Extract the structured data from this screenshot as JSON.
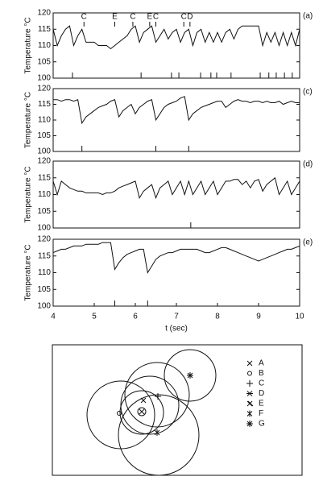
{
  "chart_data": [
    {
      "type": "line",
      "label": "(a)",
      "ylabel": "Temperature °C",
      "xlim": [
        4,
        10
      ],
      "ylim": [
        100,
        120
      ],
      "yticks": [
        100,
        105,
        110,
        115,
        120
      ],
      "x": [
        4,
        4.1,
        4.2,
        4.3,
        4.4,
        4.5,
        4.6,
        4.7,
        4.8,
        4.9,
        5,
        5.1,
        5.2,
        5.3,
        5.4,
        5.5,
        5.6,
        5.7,
        5.8,
        5.9,
        6,
        6.1,
        6.2,
        6.3,
        6.4,
        6.5,
        6.6,
        6.7,
        6.8,
        6.9,
        7,
        7.1,
        7.2,
        7.3,
        7.4,
        7.5,
        7.6,
        7.7,
        7.8,
        7.9,
        8,
        8.1,
        8.2,
        8.3,
        8.4,
        8.5,
        8.6,
        8.7,
        8.8,
        8.9,
        9,
        9.1,
        9.2,
        9.3,
        9.4,
        9.5,
        9.6,
        9.7,
        9.8,
        9.9,
        10
      ],
      "values": [
        115,
        110,
        113,
        115,
        116,
        110,
        113,
        115,
        111,
        111,
        111,
        110,
        110,
        110,
        109,
        110,
        111,
        112,
        113,
        115,
        116,
        111,
        114,
        115,
        116,
        111,
        113,
        115,
        112,
        114,
        115,
        111,
        114,
        115,
        110,
        114,
        115,
        111,
        114,
        111,
        114,
        111,
        114,
        115,
        112,
        115,
        116,
        116,
        116,
        116,
        116,
        110,
        114,
        111,
        114,
        110,
        114,
        110,
        114,
        110,
        115
      ],
      "events": [
        4.47,
        6.14,
        6.88,
        7.06,
        7.59,
        7.84,
        7.98,
        8.33,
        9.04,
        9.25,
        9.43,
        9.63,
        9.82
      ],
      "annotations": [
        {
          "text": "C",
          "x": 4.75
        },
        {
          "text": "E",
          "x": 5.5
        },
        {
          "text": "C",
          "x": 5.94
        },
        {
          "text": "E",
          "x": 6.35
        },
        {
          "text": "C",
          "x": 6.5
        },
        {
          "text": "C",
          "x": 7.18
        },
        {
          "text": "D",
          "x": 7.33
        }
      ]
    },
    {
      "type": "line",
      "label": "(c)",
      "ylabel": "Temperature °C",
      "xlim": [
        4,
        10
      ],
      "ylim": [
        100,
        120
      ],
      "yticks": [
        100,
        105,
        110,
        115,
        120
      ],
      "x": [
        4,
        4.1,
        4.2,
        4.3,
        4.4,
        4.5,
        4.6,
        4.7,
        4.8,
        4.9,
        5,
        5.1,
        5.2,
        5.3,
        5.4,
        5.5,
        5.6,
        5.7,
        5.8,
        5.9,
        6,
        6.1,
        6.2,
        6.3,
        6.4,
        6.5,
        6.6,
        6.7,
        6.8,
        6.9,
        7,
        7.1,
        7.2,
        7.3,
        7.4,
        7.5,
        7.6,
        7.7,
        7.8,
        7.9,
        8,
        8.1,
        8.2,
        8.3,
        8.4,
        8.5,
        8.6,
        8.7,
        8.8,
        8.9,
        9,
        9.1,
        9.2,
        9.3,
        9.4,
        9.5,
        9.6,
        9.7,
        9.8,
        9.9,
        10
      ],
      "values": [
        116.5,
        116.5,
        116,
        116.5,
        116.5,
        116,
        116.5,
        109,
        111,
        112,
        113,
        114,
        114.5,
        115,
        116,
        116.5,
        111,
        113,
        114,
        115,
        112,
        114,
        115,
        116,
        116.5,
        110,
        112,
        114,
        115,
        115.5,
        116,
        117,
        117.5,
        110,
        112,
        113,
        114,
        114.5,
        115,
        115.5,
        116,
        116,
        114,
        115,
        116,
        116.5,
        116,
        116,
        115.5,
        116,
        116,
        115.5,
        116,
        115.5,
        115.5,
        116,
        115,
        115.5,
        116,
        115.5,
        115.5
      ],
      "events": [
        4.7,
        6.5,
        7.3
      ]
    },
    {
      "type": "line",
      "label": "(d)",
      "ylabel": "Temperature °C",
      "xlim": [
        4,
        10
      ],
      "ylim": [
        100,
        120
      ],
      "yticks": [
        100,
        105,
        110,
        115,
        120
      ],
      "x": [
        4,
        4.1,
        4.2,
        4.3,
        4.4,
        4.5,
        4.6,
        4.7,
        4.8,
        4.9,
        5,
        5.1,
        5.2,
        5.3,
        5.4,
        5.5,
        5.6,
        5.7,
        5.8,
        5.9,
        6,
        6.1,
        6.2,
        6.3,
        6.4,
        6.5,
        6.6,
        6.7,
        6.8,
        6.9,
        7,
        7.1,
        7.2,
        7.3,
        7.4,
        7.5,
        7.6,
        7.7,
        7.8,
        7.9,
        8,
        8.1,
        8.2,
        8.3,
        8.4,
        8.5,
        8.6,
        8.7,
        8.8,
        8.9,
        9,
        9.1,
        9.2,
        9.3,
        9.4,
        9.5,
        9.6,
        9.7,
        9.8,
        9.9,
        10
      ],
      "values": [
        114,
        110,
        114,
        113,
        112,
        111.5,
        111,
        111,
        110.5,
        110.5,
        110.5,
        110.5,
        110,
        110.5,
        110.5,
        111,
        112,
        112.5,
        113,
        113.5,
        114,
        109,
        111,
        112,
        113,
        109,
        112,
        113,
        114,
        110,
        112,
        114,
        110,
        114,
        110,
        112,
        114,
        110,
        112,
        114,
        110,
        112,
        114,
        114,
        114.5,
        114.5,
        113,
        114,
        112,
        114,
        114.5,
        111,
        113,
        114,
        115,
        110,
        112,
        114,
        110,
        112,
        114
      ],
      "events": [
        7.35
      ]
    },
    {
      "type": "line",
      "label": "(e)",
      "ylabel": "Temperature °C",
      "xlabel": "t (sec)",
      "xlim": [
        4,
        10
      ],
      "xticks": [
        4,
        5,
        6,
        7,
        8,
        9,
        10
      ],
      "ylim": [
        100,
        120
      ],
      "yticks": [
        100,
        105,
        110,
        115,
        120
      ],
      "x": [
        4,
        4.1,
        4.2,
        4.3,
        4.4,
        4.5,
        4.6,
        4.7,
        4.8,
        4.9,
        5,
        5.1,
        5.2,
        5.3,
        5.4,
        5.5,
        5.6,
        5.7,
        5.8,
        5.9,
        6,
        6.1,
        6.2,
        6.3,
        6.4,
        6.5,
        6.6,
        6.7,
        6.8,
        6.9,
        7,
        7.1,
        7.2,
        7.3,
        7.4,
        7.5,
        7.6,
        7.7,
        7.8,
        7.9,
        8,
        8.1,
        8.2,
        8.3,
        8.4,
        8.5,
        8.6,
        8.7,
        8.8,
        8.9,
        9,
        9.1,
        9.2,
        9.3,
        9.4,
        9.5,
        9.6,
        9.7,
        9.8,
        9.9,
        10
      ],
      "values": [
        116,
        116.5,
        117,
        117,
        117.5,
        118,
        118,
        118,
        118.5,
        118.5,
        118.5,
        118.5,
        119,
        119,
        119,
        111,
        113,
        114.5,
        115.5,
        116,
        116.5,
        117,
        117,
        110,
        112,
        114,
        115,
        115.5,
        116,
        116,
        116.5,
        117,
        117,
        117,
        117,
        117,
        116.5,
        116,
        116,
        116.5,
        117,
        117.5,
        117.5,
        117,
        116.5,
        116,
        115.5,
        115,
        114.5,
        114,
        113.5,
        114,
        114.5,
        115,
        115.5,
        116,
        116.5,
        117,
        117,
        117.5,
        118
      ],
      "events": [
        5.5,
        6.3
      ]
    }
  ],
  "diagram": {
    "legend": [
      "A",
      "B",
      "C",
      "D",
      "E",
      "F",
      "G"
    ]
  }
}
